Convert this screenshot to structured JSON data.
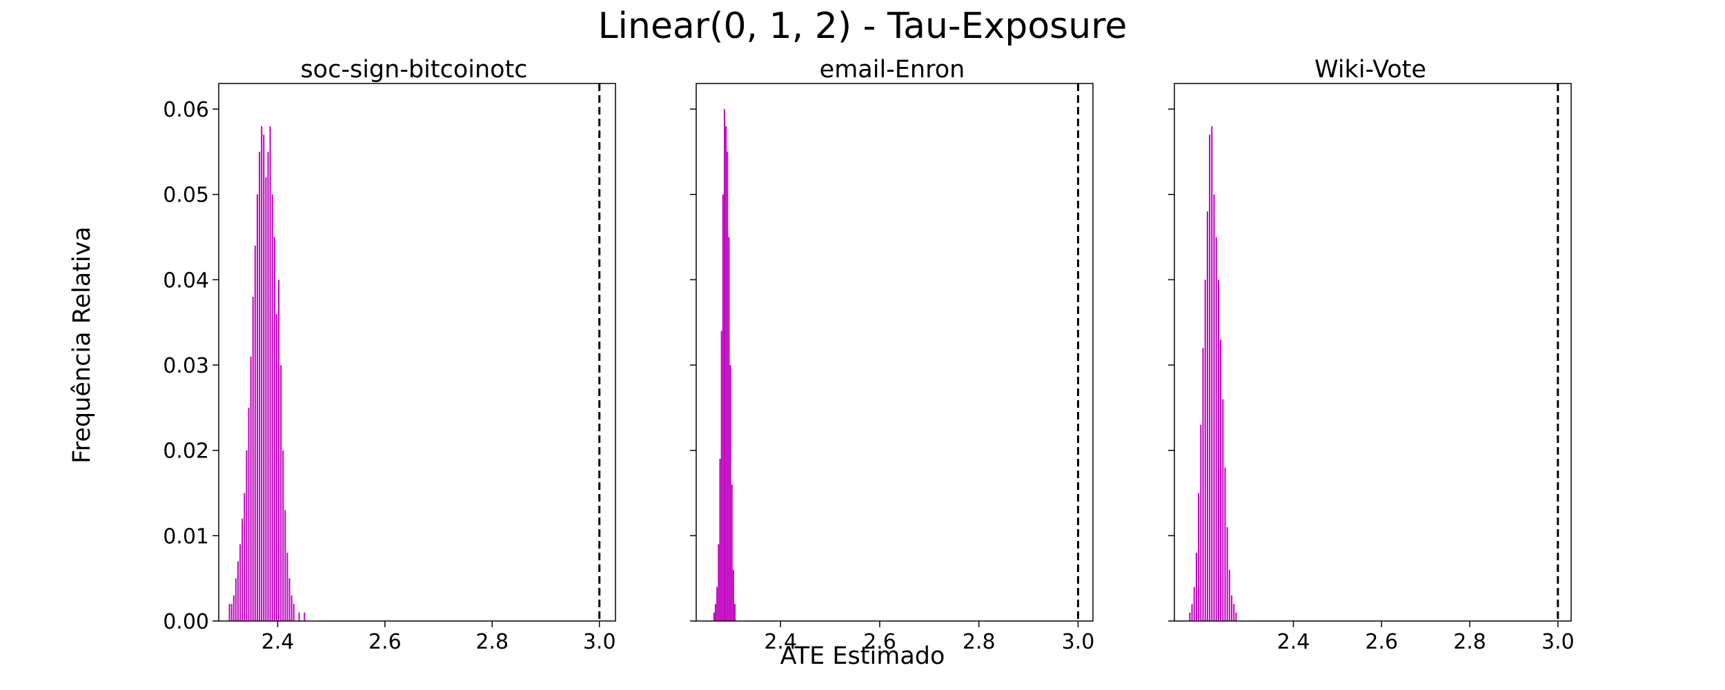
{
  "figure": {
    "title": "Linear(0, 1, 2) - Tau-Exposure",
    "ylabel": "Frequência Relativa",
    "xlabel": "ATE Estimado",
    "bar_color": "#bf00bf",
    "reference_line_color": "#000000"
  },
  "chart_data": [
    {
      "type": "bar",
      "title": "soc-sign-bitcoinotc",
      "xlim": [
        2.29,
        3.03
      ],
      "ylim": [
        0,
        0.063
      ],
      "xticks": [
        "2.4",
        "2.6",
        "2.8",
        "3.0"
      ],
      "yticks": [
        "0.00",
        "0.01",
        "0.02",
        "0.03",
        "0.04",
        "0.05",
        "0.06"
      ],
      "reference_line": 3.0,
      "bin_width": 0.002,
      "x": [
        2.31,
        2.314,
        2.318,
        2.322,
        2.326,
        2.33,
        2.334,
        2.338,
        2.342,
        2.346,
        2.35,
        2.354,
        2.358,
        2.362,
        2.366,
        2.37,
        2.374,
        2.378,
        2.382,
        2.386,
        2.39,
        2.394,
        2.398,
        2.402,
        2.406,
        2.41,
        2.414,
        2.418,
        2.422,
        2.426,
        2.43,
        2.44,
        2.45
      ],
      "values": [
        0.002,
        0.002,
        0.003,
        0.005,
        0.007,
        0.009,
        0.012,
        0.015,
        0.02,
        0.025,
        0.031,
        0.038,
        0.044,
        0.05,
        0.055,
        0.058,
        0.057,
        0.052,
        0.055,
        0.058,
        0.05,
        0.045,
        0.036,
        0.04,
        0.03,
        0.02,
        0.013,
        0.008,
        0.005,
        0.003,
        0.002,
        0.001,
        0.001
      ]
    },
    {
      "type": "bar",
      "title": "email-Enron",
      "xlim": [
        2.23,
        3.03
      ],
      "ylim": [
        0,
        0.063
      ],
      "xticks": [
        "2.4",
        "2.6",
        "2.8",
        "3.0"
      ],
      "yticks": [
        "0.00",
        "0.01",
        "0.02",
        "0.03",
        "0.04",
        "0.05",
        "0.06"
      ],
      "reference_line": 3.0,
      "bin_width": 0.0014,
      "x": [
        2.266,
        2.269,
        2.272,
        2.275,
        2.278,
        2.281,
        2.284,
        2.287,
        2.29,
        2.293,
        2.296,
        2.299,
        2.302,
        2.305,
        2.308
      ],
      "values": [
        0.001,
        0.002,
        0.004,
        0.009,
        0.019,
        0.034,
        0.05,
        0.06,
        0.058,
        0.055,
        0.045,
        0.03,
        0.016,
        0.006,
        0.002
      ]
    },
    {
      "type": "bar",
      "title": "Wiki-Vote",
      "xlim": [
        2.13,
        3.03
      ],
      "ylim": [
        0,
        0.063
      ],
      "xticks": [
        "2.4",
        "2.6",
        "2.8",
        "3.0"
      ],
      "yticks": [
        "0.00",
        "0.01",
        "0.02",
        "0.03",
        "0.04",
        "0.05",
        "0.06"
      ],
      "reference_line": 3.0,
      "bin_width": 0.0017,
      "x": [
        2.165,
        2.17,
        2.175,
        2.18,
        2.185,
        2.19,
        2.195,
        2.2,
        2.205,
        2.21,
        2.215,
        2.22,
        2.225,
        2.23,
        2.235,
        2.24,
        2.245,
        2.25,
        2.255,
        2.26,
        2.265,
        2.27
      ],
      "values": [
        0.001,
        0.002,
        0.004,
        0.008,
        0.015,
        0.023,
        0.032,
        0.04,
        0.048,
        0.057,
        0.058,
        0.05,
        0.045,
        0.04,
        0.033,
        0.026,
        0.018,
        0.011,
        0.006,
        0.003,
        0.002,
        0.001
      ]
    }
  ]
}
